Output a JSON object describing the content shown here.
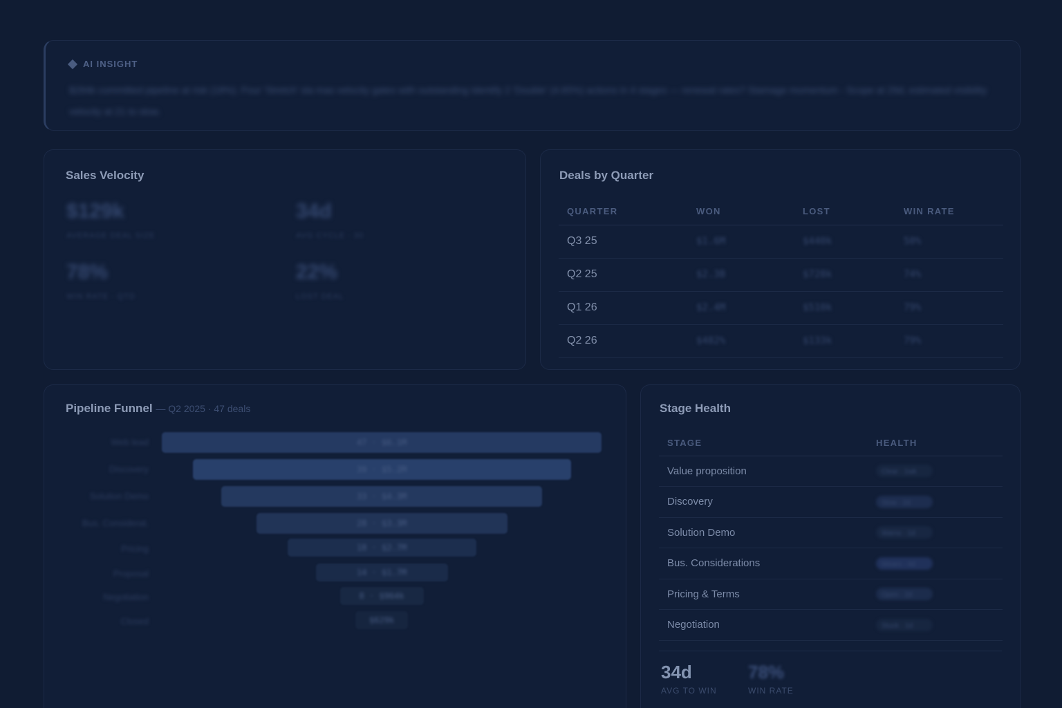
{
  "insight": {
    "label": "AI INSIGHT",
    "text": "$284k committed pipeline at risk (18%). Four 'Stretch' sla mas velocity gates with outstanding Identify 2 'Double' (4.65%) actions in 4 stages — renewal rates? Stamage momentum - Scope at 29d, estimated visibility velocity at 21 to slow."
  },
  "velocity": {
    "title": "Sales Velocity",
    "metrics": [
      {
        "value": "$129k",
        "label": "AVERAGE DEAL SIZE"
      },
      {
        "value": "34d",
        "label": "AVG CYCLE · 30"
      },
      {
        "value": "78%",
        "label": "WIN RATE · QTD"
      },
      {
        "value": "22%",
        "label": "LOST DEAL"
      }
    ]
  },
  "deals": {
    "title": "Deals by Quarter",
    "columns": [
      "QUARTER",
      "WON",
      "LOST",
      "WIN RATE"
    ],
    "rows": [
      {
        "quarter": "Q3 25",
        "won": "$1.6M",
        "lost": "$440k",
        "rate": "50%"
      },
      {
        "quarter": "Q2 25",
        "won": "$2.3B",
        "lost": "$728k",
        "rate": "74%"
      },
      {
        "quarter": "Q1 26",
        "won": "$2.4M",
        "lost": "$510k",
        "rate": "79%"
      },
      {
        "quarter": "Q2 26",
        "won": "$482%",
        "lost": "$133k",
        "rate": "79%"
      }
    ]
  },
  "funnel": {
    "title": "Pipeline Funnel",
    "subtitle": "— Q2 2025 · 47 deals",
    "stages": [
      {
        "label": "Web lead",
        "value": "47 · $6.1M",
        "fraction": 1.0
      },
      {
        "label": "Discovery",
        "value": "39 · $5.2M",
        "fraction": 0.86
      },
      {
        "label": "Solution Demo",
        "value": "33 · $4.3M",
        "fraction": 0.73
      },
      {
        "label": "Bus. Considerat.",
        "value": "28 · $3.3M",
        "fraction": 0.57
      },
      {
        "label": "Pricing",
        "value": "18 · $2.7M",
        "fraction": 0.43
      },
      {
        "label": "Proposal",
        "value": "14 · $1.7M",
        "fraction": 0.3
      },
      {
        "label": "Negotiation",
        "value": "8 · $964k",
        "fraction": 0.19
      },
      {
        "label": "Closed",
        "value": "$629k",
        "fraction": 0.12
      }
    ]
  },
  "health": {
    "title": "Stage Health",
    "columns": [
      "STAGE",
      "HEALTH"
    ],
    "rows": [
      {
        "stage": "Value proposition",
        "health": "Clear · 1wk",
        "color": "#172640"
      },
      {
        "stage": "Discovery",
        "health": "Slow · 2d",
        "color": "#1d2d4f"
      },
      {
        "stage": "Solution Demo",
        "health": "Warns · 1d",
        "color": "#182742"
      },
      {
        "stage": "Bus. Considerations",
        "health": "Wears · 4d",
        "color": "#20315a"
      },
      {
        "stage": "Pricing & Terms",
        "health": "Open · 2d",
        "color": "#1c2c4c"
      },
      {
        "stage": "Negotiation",
        "health": "Stuck · 1d",
        "color": "#172640"
      }
    ],
    "footer": [
      {
        "value": "34d",
        "label": "AVG TO WIN"
      },
      {
        "value": "78%",
        "label": "WIN RATE"
      }
    ]
  }
}
